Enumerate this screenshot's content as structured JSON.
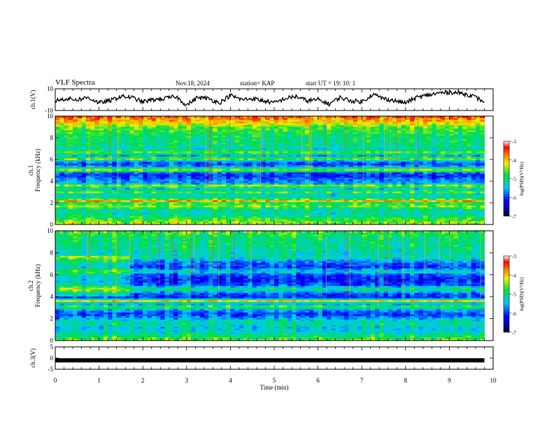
{
  "header": {
    "title": "VLF Spectra",
    "date": "Nov.18, 2024",
    "station": "station= KAP",
    "start": "start  UT =   19: 10: 1"
  },
  "chart_data": [
    {
      "type": "line",
      "panel": "ch1-voltage",
      "ylabel": "ch.1(V)",
      "ylim": [
        -10,
        10
      ],
      "y_ticks": [
        "10",
        "-10"
      ],
      "xlim": [
        0,
        10
      ],
      "series": [
        {
          "x": [
            0,
            0.25,
            0.5,
            0.75,
            1.0,
            1.25,
            1.5,
            1.75,
            2.0,
            2.25,
            2.5,
            2.75,
            3.0,
            3.25,
            3.5,
            3.75,
            4.0,
            4.25,
            4.5,
            4.75,
            5.0,
            5.25,
            5.5,
            5.75,
            6.0,
            6.25,
            6.5,
            6.75,
            7.0,
            7.25,
            7.5,
            7.75,
            8.0,
            8.25,
            8.5,
            8.75,
            9.0,
            9.25,
            9.5,
            9.8
          ],
          "values": [
            -1,
            1,
            0,
            2,
            -3,
            -1,
            3,
            2,
            -2,
            0,
            1,
            3,
            -5,
            2,
            1,
            -3,
            4,
            0,
            1,
            -1,
            -3,
            1,
            3,
            -1,
            0,
            -4,
            2,
            -1,
            -2,
            5,
            1,
            -1,
            -3,
            2,
            4,
            6,
            7,
            6,
            4,
            -2
          ]
        }
      ]
    },
    {
      "type": "heatmap",
      "panel": "ch1-spectrogram",
      "ylabel_top": "ch.1",
      "ylabel": "Frequency (kHz)",
      "ylim": [
        0,
        10
      ],
      "y_ticks": [
        "0",
        "2",
        "4",
        "6",
        "8",
        "10"
      ],
      "xlim": [
        0,
        10
      ],
      "data_extent_min": [
        0,
        9.8
      ],
      "colorbar": {
        "label": "log(PSD)(V²/Hz)",
        "range": [
          -7,
          -3
        ],
        "ticks": [
          "-3",
          "-4",
          "-5",
          "-6",
          "-7"
        ]
      },
      "frequency_profile_logpsd": [
        [
          0.0,
          -4.2
        ],
        [
          0.3,
          -4.6
        ],
        [
          0.6,
          -4.8
        ],
        [
          1.0,
          -5.2
        ],
        [
          1.4,
          -5.1
        ],
        [
          1.7,
          -4.5
        ],
        [
          2.0,
          -4.9
        ],
        [
          2.2,
          -3.8
        ],
        [
          2.4,
          -5.0
        ],
        [
          2.8,
          -5.3
        ],
        [
          3.0,
          -4.6
        ],
        [
          3.3,
          -5.4
        ],
        [
          3.6,
          -4.3
        ],
        [
          3.8,
          -5.6
        ],
        [
          4.2,
          -5.8
        ],
        [
          4.5,
          -6.1
        ],
        [
          4.8,
          -5.9
        ],
        [
          5.0,
          -4.2
        ],
        [
          5.2,
          -5.0
        ],
        [
          5.5,
          -6.0
        ],
        [
          5.8,
          -5.8
        ],
        [
          6.1,
          -4.4
        ],
        [
          6.4,
          -5.7
        ],
        [
          6.6,
          -4.5
        ],
        [
          7.0,
          -5.2
        ],
        [
          7.5,
          -5.0
        ],
        [
          8.0,
          -5.0
        ],
        [
          8.5,
          -4.8
        ],
        [
          9.0,
          -4.6
        ],
        [
          9.5,
          -4.0
        ],
        [
          10.0,
          -3.6
        ]
      ]
    },
    {
      "type": "heatmap",
      "panel": "ch2-spectrogram",
      "ylabel_top": "ch.2",
      "ylabel": "Frequency (kHz)",
      "ylim": [
        0,
        10
      ],
      "y_ticks": [
        "0",
        "2",
        "4",
        "6",
        "8",
        "10"
      ],
      "xlim": [
        0,
        10
      ],
      "data_extent_min": [
        0,
        9.8
      ],
      "colorbar": {
        "label": "log(PSD)(V²/Hz)",
        "range": [
          -7,
          -3
        ],
        "ticks": [
          "-3",
          "-4",
          "-5",
          "-6",
          "-7"
        ]
      },
      "frequency_profile_logpsd": [
        [
          0.0,
          -4.4
        ],
        [
          0.3,
          -4.8
        ],
        [
          0.8,
          -5.2
        ],
        [
          1.2,
          -5.4
        ],
        [
          1.6,
          -5.0
        ],
        [
          2.0,
          -5.5
        ],
        [
          2.4,
          -6.0
        ],
        [
          2.8,
          -5.6
        ],
        [
          3.1,
          -4.6
        ],
        [
          3.4,
          -5.8
        ],
        [
          3.6,
          -3.9
        ],
        [
          3.9,
          -6.0
        ],
        [
          4.3,
          -5.9
        ],
        [
          4.7,
          -4.9
        ],
        [
          5.1,
          -5.9
        ],
        [
          5.6,
          -6.1
        ],
        [
          6.0,
          -5.9
        ],
        [
          6.3,
          -5.2
        ],
        [
          6.7,
          -6.0
        ],
        [
          7.2,
          -5.7
        ],
        [
          7.6,
          -5.1
        ],
        [
          8.0,
          -5.2
        ],
        [
          8.5,
          -5.0
        ],
        [
          9.0,
          -5.0
        ],
        [
          9.5,
          -4.9
        ],
        [
          10.0,
          -4.6
        ]
      ],
      "early_segment_end_min": 1.7
    },
    {
      "type": "line",
      "panel": "ch3-voltage",
      "ylabel": "ch.3(V)",
      "ylim": [
        -5,
        5
      ],
      "y_ticks": [
        "5",
        "0",
        "-5"
      ],
      "xlim": [
        0,
        10
      ],
      "series": [
        {
          "x": [
            0,
            9.8
          ],
          "values": [
            -1,
            -1
          ]
        }
      ]
    }
  ],
  "x_axis": {
    "label": "Time  (min)",
    "ticks": [
      "0",
      "1",
      "2",
      "3",
      "4",
      "5",
      "6",
      "7",
      "8",
      "9",
      "10"
    ]
  }
}
